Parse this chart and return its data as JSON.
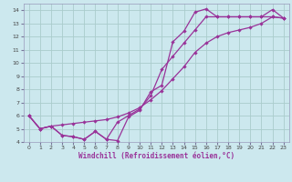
{
  "bg_color": "#cce8ee",
  "grid_color": "#aacccc",
  "line_color": "#993399",
  "xlabel": "Windchill (Refroidissement éolien,°C)",
  "xlim": [
    -0.5,
    23.5
  ],
  "ylim": [
    4,
    14.5
  ],
  "xticks": [
    0,
    1,
    2,
    3,
    4,
    5,
    6,
    7,
    8,
    9,
    10,
    11,
    12,
    13,
    14,
    15,
    16,
    17,
    18,
    19,
    20,
    21,
    22,
    23
  ],
  "yticks": [
    4,
    5,
    6,
    7,
    8,
    9,
    10,
    11,
    12,
    13,
    14
  ],
  "line1_x": [
    0,
    1,
    2,
    3,
    4,
    5,
    6,
    7,
    8,
    9,
    10,
    11,
    12,
    13,
    14,
    15,
    16,
    17,
    18,
    19,
    20,
    21,
    22,
    23
  ],
  "line1_y": [
    6.0,
    5.0,
    5.2,
    4.5,
    4.4,
    4.2,
    4.8,
    4.2,
    4.1,
    5.9,
    6.4,
    7.8,
    8.3,
    11.6,
    12.4,
    13.85,
    14.1,
    13.5,
    13.5,
    13.5,
    13.5,
    13.5,
    14.05,
    13.4
  ],
  "line2_x": [
    0,
    1,
    2,
    3,
    4,
    5,
    6,
    7,
    8,
    9,
    10,
    11,
    12,
    13,
    14,
    15,
    16,
    17,
    18,
    19,
    20,
    21,
    22,
    23
  ],
  "line2_y": [
    6.0,
    5.0,
    5.2,
    5.3,
    5.4,
    5.5,
    5.6,
    5.7,
    5.9,
    6.2,
    6.6,
    7.2,
    7.9,
    8.8,
    9.7,
    10.8,
    11.5,
    12.0,
    12.3,
    12.5,
    12.7,
    13.0,
    13.5,
    13.4
  ],
  "line3_x": [
    0,
    1,
    2,
    3,
    4,
    5,
    6,
    7,
    8,
    9,
    10,
    11,
    12,
    13,
    14,
    15,
    16,
    17,
    18,
    19,
    20,
    21,
    22,
    23
  ],
  "line3_y": [
    6.0,
    5.0,
    5.2,
    4.5,
    4.4,
    4.2,
    4.8,
    4.2,
    5.5,
    6.0,
    6.5,
    7.5,
    9.5,
    10.5,
    11.5,
    12.5,
    13.5,
    13.5,
    13.5,
    13.5,
    13.5,
    13.5,
    13.5,
    13.4
  ]
}
